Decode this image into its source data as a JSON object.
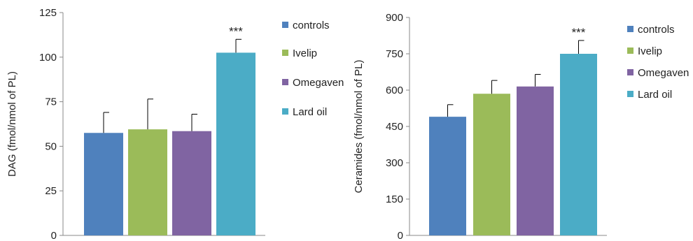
{
  "chart_data": [
    {
      "type": "bar",
      "title": "",
      "xlabel": "",
      "ylabel": "DAG (fmol/nmol of PL)",
      "ylim": [
        0,
        125
      ],
      "yticks": [
        0,
        25,
        50,
        75,
        100,
        125
      ],
      "grid": false,
      "legend_position": "right",
      "categories": [
        "controls",
        "Ivelip",
        "Omegaven",
        "Lard oil"
      ],
      "values": [
        57.5,
        59.5,
        58.5,
        102.5
      ],
      "error_bars": [
        11.5,
        17,
        9.5,
        7.5
      ],
      "colors": [
        "#4f81bd",
        "#9bbb59",
        "#8064a2",
        "#4bacc6"
      ],
      "annotations": [
        {
          "category": "Lard oil",
          "text": "***"
        }
      ]
    },
    {
      "type": "bar",
      "title": "",
      "xlabel": "",
      "ylabel": "Ceramides (fmol/nmol of PL)",
      "ylim": [
        0,
        900
      ],
      "yticks": [
        0,
        150,
        300,
        450,
        600,
        750,
        900
      ],
      "grid": false,
      "legend_position": "right",
      "categories": [
        "controls",
        "Ivelip",
        "Omegaven",
        "Lard oil"
      ],
      "values": [
        490,
        585,
        615,
        750
      ],
      "error_bars": [
        50,
        55,
        50,
        55
      ],
      "colors": [
        "#4f81bd",
        "#9bbb59",
        "#8064a2",
        "#4bacc6"
      ],
      "annotations": [
        {
          "category": "Lard oil",
          "text": "***"
        }
      ]
    }
  ]
}
